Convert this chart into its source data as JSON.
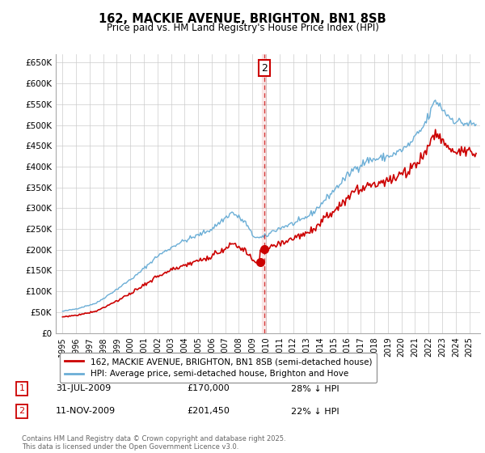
{
  "title": "162, MACKIE AVENUE, BRIGHTON, BN1 8SB",
  "subtitle": "Price paid vs. HM Land Registry's House Price Index (HPI)",
  "ylim": [
    0,
    670000
  ],
  "yticks": [
    0,
    50000,
    100000,
    150000,
    200000,
    250000,
    300000,
    350000,
    400000,
    450000,
    500000,
    550000,
    600000,
    650000
  ],
  "ytick_labels": [
    "£0",
    "£50K",
    "£100K",
    "£150K",
    "£200K",
    "£250K",
    "£300K",
    "£350K",
    "£400K",
    "£450K",
    "£500K",
    "£550K",
    "£600K",
    "£650K"
  ],
  "hpi_color": "#6baed6",
  "price_color": "#cc0000",
  "vline_color": "#cc0000",
  "grid_color": "#cccccc",
  "background_color": "#ffffff",
  "legend_label_red": "162, MACKIE AVENUE, BRIGHTON, BN1 8SB (semi-detached house)",
  "legend_label_blue": "HPI: Average price, semi-detached house, Brighton and Hove",
  "sale1_label": "1",
  "sale1_date": "31-JUL-2009",
  "sale1_price": "£170,000",
  "sale1_note": "28% ↓ HPI",
  "sale2_label": "2",
  "sale2_date": "11-NOV-2009",
  "sale2_price": "£201,450",
  "sale2_note": "22% ↓ HPI",
  "footer": "Contains HM Land Registry data © Crown copyright and database right 2025.\nThis data is licensed under the Open Government Licence v3.0.",
  "vline_x": 2009.87,
  "sale1_x": 2009.58,
  "sale1_y": 170000,
  "sale2_x": 2009.87,
  "sale2_y": 201450,
  "xlim_left": 1994.5,
  "xlim_right": 2025.8
}
